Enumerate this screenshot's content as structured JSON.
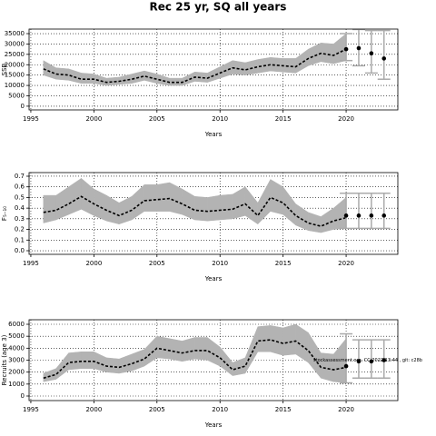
{
  "chart_data": [
    {
      "type": "line",
      "title": "Rec 25 yr, SQ all years",
      "xlabel": "Years",
      "ylabel": "SSB",
      "x": [
        1996,
        1997,
        1998,
        1999,
        2000,
        2001,
        2002,
        2003,
        2004,
        2005,
        2006,
        2007,
        2008,
        2009,
        2010,
        2011,
        2012,
        2013,
        2014,
        2015,
        2016,
        2017,
        2018,
        2019,
        2020
      ],
      "values": [
        18000,
        15500,
        15000,
        13000,
        13000,
        11500,
        12000,
        13000,
        14500,
        13000,
        11500,
        11500,
        14000,
        13500,
        16000,
        18500,
        17500,
        19000,
        20000,
        19500,
        19000,
        23000,
        25500,
        24500,
        27500
      ],
      "lower": [
        15000,
        13000,
        12500,
        11000,
        11000,
        10000,
        10500,
        11000,
        12500,
        11000,
        10000,
        10000,
        12000,
        11500,
        13500,
        15500,
        15000,
        16000,
        17000,
        16500,
        16000,
        19500,
        21500,
        20500,
        22000
      ],
      "upper": [
        22000,
        18500,
        18000,
        16000,
        15500,
        13500,
        14000,
        15500,
        17000,
        15500,
        13500,
        13500,
        16500,
        16000,
        19000,
        22000,
        21000,
        22500,
        23500,
        23000,
        23000,
        27500,
        30500,
        30000,
        35000
      ],
      "forecast": {
        "x": [
          2020,
          2021,
          2022,
          2023
        ],
        "values": [
          27500,
          28000,
          25500,
          23000
        ],
        "lower": [
          22000,
          19500,
          16000,
          13000
        ],
        "upper": [
          35000,
          37000,
          36500,
          36500
        ]
      },
      "xlim": [
        1994.86,
        2024.1
      ],
      "xticks": [
        1995,
        2000,
        2005,
        2010,
        2015,
        2020
      ],
      "ylim": [
        -1800,
        37200
      ],
      "yticks": [
        0,
        5000,
        10000,
        15000,
        20000,
        25000,
        30000,
        35000
      ],
      "grid": true,
      "color": "#000000",
      "band_color": "#b3b3b3",
      "errorbar_color": "#aaaaaa"
    },
    {
      "type": "line",
      "xlabel": "Years",
      "ylabel": "F₅₋₁₀",
      "x": [
        1996,
        1997,
        1998,
        1999,
        2000,
        2001,
        2002,
        2003,
        2004,
        2005,
        2006,
        2007,
        2008,
        2009,
        2010,
        2011,
        2012,
        2013,
        2014,
        2015,
        2016,
        2017,
        2018,
        2019,
        2020
      ],
      "values": [
        0.36,
        0.38,
        0.44,
        0.51,
        0.44,
        0.38,
        0.33,
        0.38,
        0.47,
        0.48,
        0.49,
        0.44,
        0.38,
        0.37,
        0.38,
        0.39,
        0.44,
        0.33,
        0.5,
        0.45,
        0.33,
        0.26,
        0.23,
        0.28,
        0.31
      ],
      "lower": [
        0.26,
        0.29,
        0.34,
        0.39,
        0.33,
        0.28,
        0.25,
        0.29,
        0.37,
        0.37,
        0.37,
        0.34,
        0.29,
        0.28,
        0.29,
        0.3,
        0.33,
        0.25,
        0.37,
        0.34,
        0.24,
        0.19,
        0.17,
        0.2,
        0.21
      ],
      "upper": [
        0.52,
        0.52,
        0.6,
        0.68,
        0.58,
        0.52,
        0.45,
        0.51,
        0.62,
        0.62,
        0.64,
        0.58,
        0.51,
        0.5,
        0.52,
        0.53,
        0.6,
        0.45,
        0.67,
        0.6,
        0.44,
        0.36,
        0.32,
        0.4,
        0.5
      ],
      "forecast": {
        "x": [
          2020,
          2021,
          2022,
          2023
        ],
        "values": [
          0.33,
          0.33,
          0.33,
          0.33
        ],
        "lower": [
          0.21,
          0.21,
          0.21,
          0.21
        ],
        "upper": [
          0.54,
          0.54,
          0.54,
          0.54
        ]
      },
      "xlim": [
        1994.86,
        2024.1
      ],
      "xticks": [
        1995,
        2000,
        2005,
        2010,
        2015,
        2020
      ],
      "ylim": [
        -0.034,
        0.734
      ],
      "yticks": [
        {
          "value": 0,
          "label": "0.0"
        },
        0.1,
        0.2,
        0.3,
        0.4,
        0.5,
        0.6,
        0.7
      ],
      "grid": true,
      "color": "#000000",
      "band_color": "#b3b3b3",
      "errorbar_color": "#aaaaaa"
    },
    {
      "type": "line",
      "xlabel": "Years",
      "ylabel": "Recruits (age 3)",
      "annotation": "stockassessment.org, CC 2022 13:44 , git: c28b",
      "x": [
        1996,
        1997,
        1998,
        1999,
        2000,
        2001,
        2002,
        2003,
        2004,
        2005,
        2006,
        2007,
        2008,
        2009,
        2010,
        2011,
        2012,
        2013,
        2014,
        2015,
        2016,
        2017,
        2018,
        2019,
        2020
      ],
      "values": [
        1500,
        1800,
        2800,
        2900,
        2900,
        2500,
        2400,
        2700,
        3100,
        4000,
        3800,
        3600,
        3800,
        3800,
        3200,
        2200,
        2500,
        4600,
        4700,
        4400,
        4600,
        3800,
        2400,
        2200,
        2400
      ],
      "lower": [
        1200,
        1400,
        2200,
        2300,
        2300,
        2000,
        1900,
        2100,
        2500,
        3200,
        3100,
        2900,
        3100,
        3000,
        2500,
        1700,
        1900,
        3700,
        3700,
        3400,
        3500,
        2800,
        1500,
        1200,
        1100
      ],
      "upper": [
        1900,
        2300,
        3600,
        3700,
        3700,
        3200,
        3100,
        3500,
        3900,
        5000,
        4800,
        4600,
        4900,
        4900,
        4100,
        2800,
        3200,
        5800,
        5900,
        5700,
        6000,
        5300,
        3600,
        3500,
        4800
      ],
      "forecast": {
        "x": [
          2020,
          2021,
          2022,
          2023
        ],
        "values": [
          2500,
          2900,
          2900,
          3000
        ],
        "lower": [
          1100,
          1500,
          1500,
          1500
        ],
        "upper": [
          5200,
          4700,
          4700,
          4700
        ]
      },
      "xlim": [
        1994.86,
        2024.1
      ],
      "xticks": [
        1995,
        2000,
        2005,
        2010,
        2015,
        2020
      ],
      "ylim": [
        -380,
        6380
      ],
      "yticks": [
        0,
        1000,
        2000,
        3000,
        4000,
        5000,
        6000
      ],
      "grid": true,
      "color": "#000000",
      "band_color": "#b3b3b3",
      "errorbar_color": "#aaaaaa"
    }
  ]
}
